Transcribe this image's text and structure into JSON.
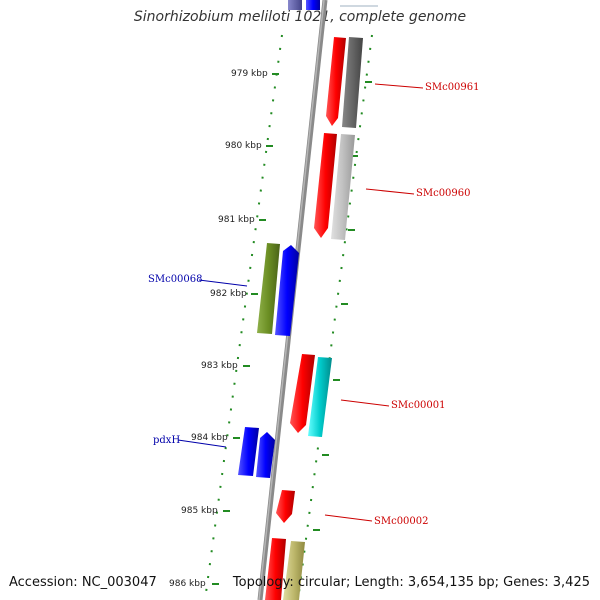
{
  "title": "Sinorhizobium meliloti 1021, complete genome",
  "footer": {
    "accession": "Accession: NC_003047",
    "summary": "Topology: circular; Length: 3,654,135 bp; Genes: 3,425"
  },
  "ticks": [
    "979 kbp",
    "980 kbp",
    "981 kbp",
    "982 kbp",
    "983 kbp",
    "984 kbp",
    "985 kbp",
    "986 kbp"
  ],
  "gene_labels": [
    {
      "text": "SMc00961",
      "color": "#cc0000"
    },
    {
      "text": "SMc00960",
      "color": "#cc0000"
    },
    {
      "text": "SMc00068",
      "color": "#0000aa"
    },
    {
      "text": "SMc00001",
      "color": "#cc0000"
    },
    {
      "text": "pdxH",
      "color": "#0000aa"
    },
    {
      "text": "SMc00002",
      "color": "#cc0000"
    }
  ],
  "colors": {
    "forward_red": "#ff0000",
    "forward_blue": "#0000ff",
    "grey_dark": "#666666",
    "grey_light": "#c0c0c0",
    "olive": "#6b8e23",
    "cyan": "#00cccc",
    "khaki": "#bdb76b",
    "tick_green": "#228b22"
  }
}
